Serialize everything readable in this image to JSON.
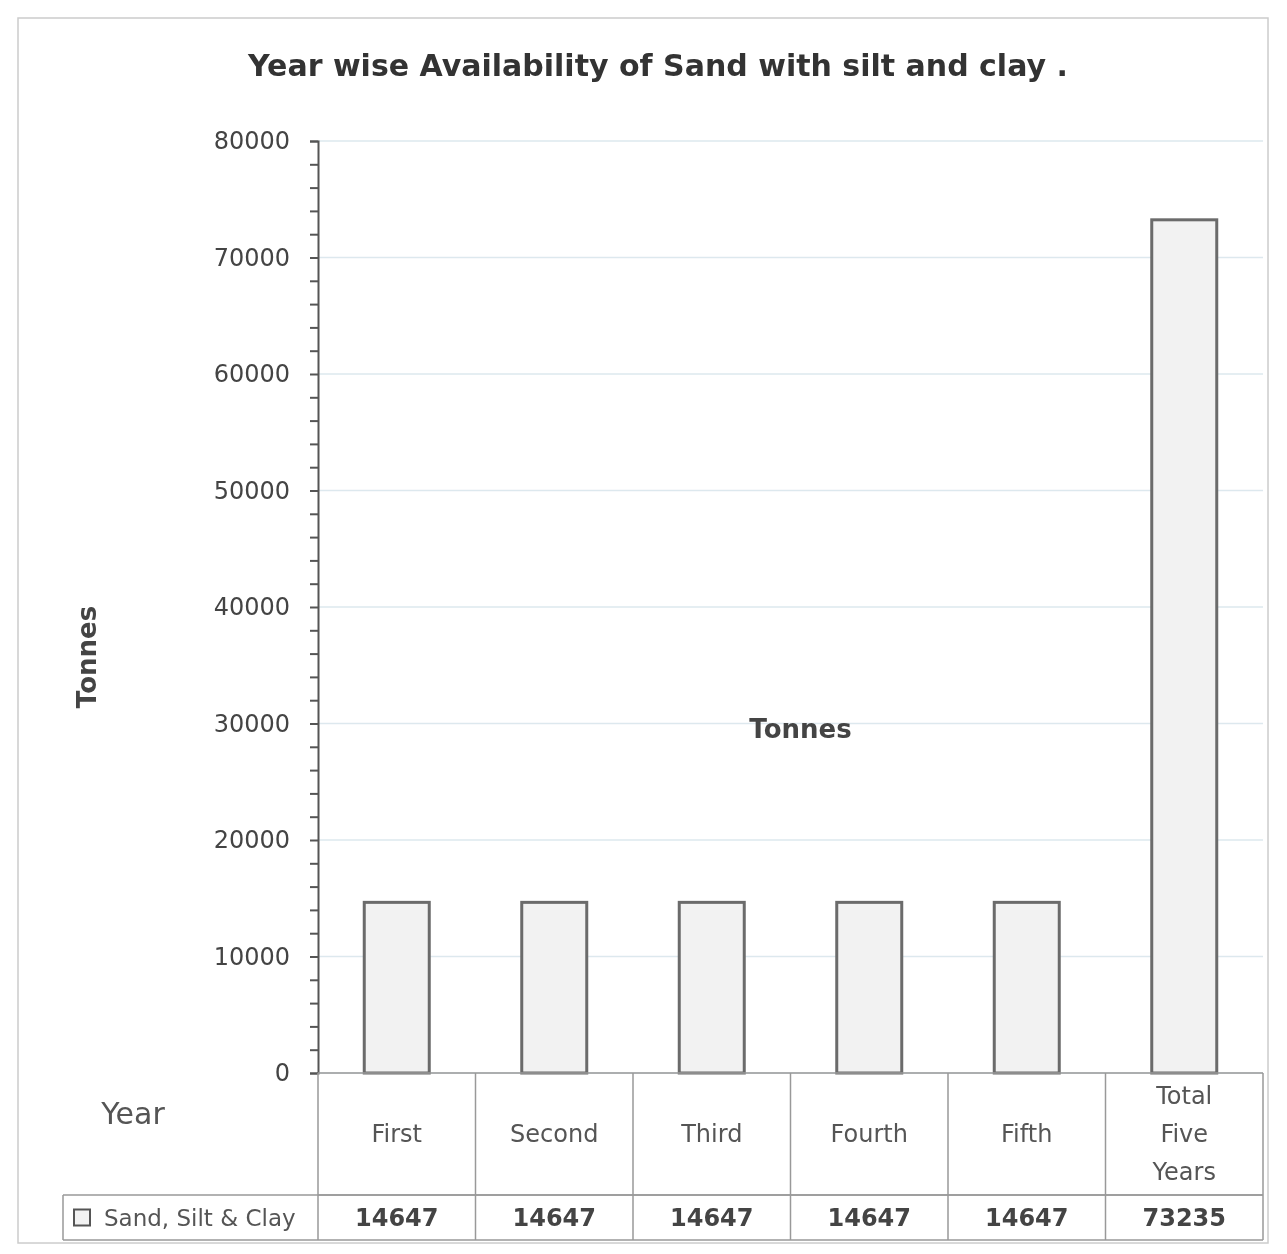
{
  "chart_data": {
    "type": "bar",
    "title": "Year wise Availability of Sand with silt and clay .",
    "ylabel": "Tonnes",
    "xlabel": "Year",
    "annotations": [
      "Tonnes"
    ],
    "categories": [
      "First",
      "Second",
      "Third",
      "Fourth",
      "Fifth",
      "Total Five Years"
    ],
    "series": [
      {
        "name": "Sand, Silt & Clay",
        "color": "#f2f2f2",
        "values": [
          14647,
          14647,
          14647,
          14647,
          14647,
          73235
        ]
      }
    ],
    "ylim": [
      0,
      80000
    ],
    "yticks": [
      0,
      {
        "value": 2000,
        "label": null
      },
      {
        "value": 4000,
        "label": null
      },
      {
        "value": 6000,
        "label": null
      },
      {
        "value": 8000,
        "label": null
      },
      10000,
      {
        "value": 12000,
        "label": null
      },
      {
        "value": 14000,
        "label": null
      },
      {
        "value": 16000,
        "label": null
      },
      {
        "value": 18000,
        "label": null
      },
      20000,
      {
        "value": 22000,
        "label": null
      },
      {
        "value": 24000,
        "label": null
      },
      {
        "value": 26000,
        "label": null
      },
      {
        "value": 28000,
        "label": null
      },
      30000,
      {
        "value": 32000,
        "label": null
      },
      {
        "value": 34000,
        "label": null
      },
      {
        "value": 36000,
        "label": null
      },
      {
        "value": 38000,
        "label": null
      },
      40000,
      {
        "value": 42000,
        "label": null
      },
      {
        "value": 44000,
        "label": null
      },
      {
        "value": 46000,
        "label": null
      },
      {
        "value": 48000,
        "label": null
      },
      50000,
      {
        "value": 52000,
        "label": null
      },
      {
        "value": 54000,
        "label": null
      },
      {
        "value": 56000,
        "label": null
      },
      {
        "value": 58000,
        "label": null
      },
      60000,
      {
        "value": 62000,
        "label": null
      },
      {
        "value": 64000,
        "label": null
      },
      {
        "value": 66000,
        "label": null
      },
      {
        "value": 68000,
        "label": null
      },
      70000,
      {
        "value": 72000,
        "label": null
      },
      {
        "value": 74000,
        "label": null
      },
      {
        "value": 76000,
        "label": null
      },
      {
        "value": 78000,
        "label": null
      },
      80000
    ],
    "grid": "y",
    "legend": "bottom",
    "data_labels": true
  }
}
